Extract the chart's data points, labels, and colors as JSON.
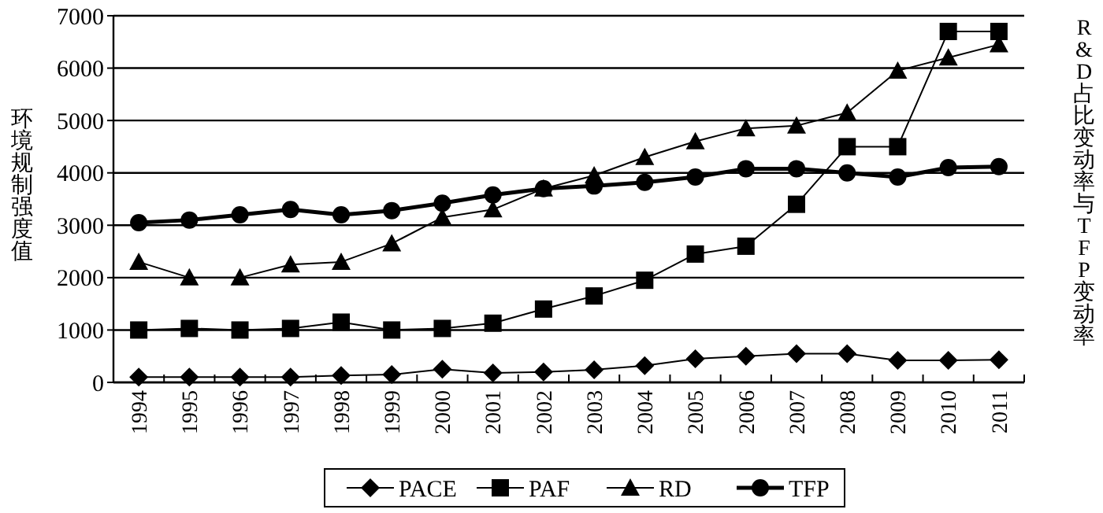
{
  "chart_data": {
    "type": "line",
    "ylabel": "环境规制强度值",
    "y2label": "R&D占比变动率与TFP变动率",
    "categories": [
      "1994",
      "1995",
      "1996",
      "1997",
      "1998",
      "1999",
      "2000",
      "2001",
      "2002",
      "2003",
      "2004",
      "2005",
      "2006",
      "2007",
      "2008",
      "2009",
      "2010",
      "2011"
    ],
    "ylim": [
      0,
      7000
    ],
    "yticks": [
      0,
      1000,
      2000,
      3000,
      4000,
      5000,
      6000,
      7000
    ],
    "grid": "y",
    "legend": "bottom",
    "line_style": "solid",
    "series": [
      {
        "name": "PACE",
        "color": "#000000",
        "marker": "diamond",
        "values": [
          100,
          100,
          100,
          100,
          130,
          150,
          250,
          180,
          200,
          240,
          320,
          450,
          500,
          550,
          550,
          420,
          420,
          430
        ]
      },
      {
        "name": "PAF",
        "color": "#000000",
        "marker": "square",
        "values": [
          1000,
          1030,
          1000,
          1030,
          1150,
          1000,
          1030,
          1130,
          1400,
          1650,
          1950,
          2450,
          2600,
          3400,
          4500,
          4500,
          6700,
          6700
        ]
      },
      {
        "name": "RD",
        "color": "#000000",
        "marker": "triangle",
        "values": [
          2300,
          2000,
          2000,
          2250,
          2300,
          2650,
          3150,
          3300,
          3700,
          3950,
          4300,
          4600,
          4850,
          4900,
          5150,
          5950,
          6200,
          6450
        ]
      },
      {
        "name": "TFP",
        "color": "#000000",
        "marker": "circle",
        "values": [
          3050,
          3100,
          3200,
          3300,
          3200,
          3280,
          3420,
          3580,
          3700,
          3750,
          3820,
          3920,
          4080,
          4080,
          4000,
          3920,
          4100,
          4120
        ]
      }
    ]
  }
}
